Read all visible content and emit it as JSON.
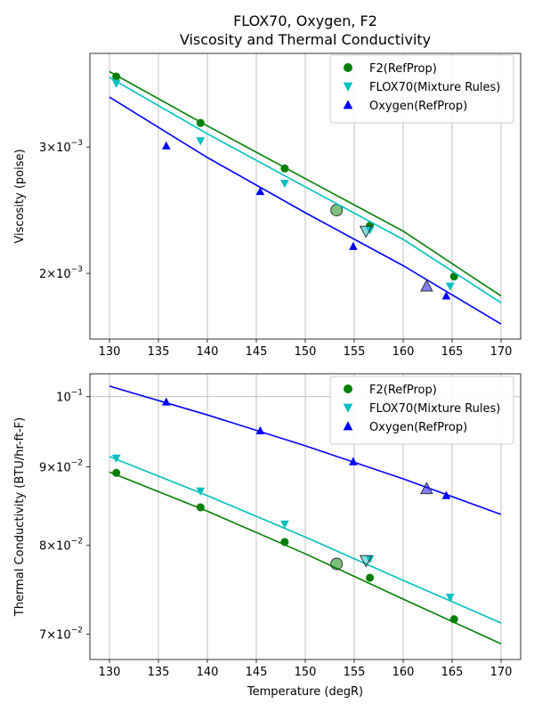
{
  "figure": {
    "title_line1": "FLOX70, Oxygen, F2",
    "title_line2": "Viscosity and Thermal Conductivity"
  },
  "chart_data": [
    {
      "type": "line",
      "title": "FLOX70, Oxygen, F2 — Viscosity and Thermal Conductivity",
      "xlabel": "",
      "ylabel": "Viscosity (poise)",
      "xlim": [
        128,
        172
      ],
      "ylim": [
        0.00162,
        0.00405
      ],
      "y_scale": "log",
      "grid": "vertical",
      "legend_position": "top-right",
      "xticks": [
        130,
        135,
        140,
        145,
        150,
        155,
        160,
        165,
        170
      ],
      "yticks": [
        {
          "value": 0.003,
          "mantissa": "3",
          "exp": "−3"
        },
        {
          "value": 0.002,
          "mantissa": "2",
          "exp": "−3"
        }
      ],
      "series": [
        {
          "name": "F2(RefProp)",
          "color": "#008000",
          "marker": "circle",
          "line": {
            "x": [
              130,
              140,
              150,
              160,
              170
            ],
            "y": [
              0.00382,
              0.00321,
              0.00271,
              0.00229,
              0.00186
            ]
          },
          "points": {
            "x": [
              130.7,
              139.3,
              147.9,
              156.6,
              165.2
            ],
            "y": [
              0.00376,
              0.00324,
              0.0028,
              0.00233,
              0.00198
            ]
          },
          "highlight": {
            "x": 153.2,
            "y": 0.00245
          }
        },
        {
          "name": "FLOX70(Mixture Rules)",
          "color": "#00bfbf",
          "marker": "triangle-down",
          "line": {
            "x": [
              130,
              140,
              150,
              160,
              170
            ],
            "y": [
              0.00375,
              0.00313,
              0.00264,
              0.00223,
              0.00182
            ]
          },
          "points": {
            "x": [
              130.7,
              139.3,
              147.9,
              156.6,
              164.8
            ],
            "y": [
              0.00368,
              0.00306,
              0.00267,
              0.0023,
              0.00192
            ]
          },
          "highlight": {
            "x": 156.2,
            "y": 0.00229
          }
        },
        {
          "name": "Oxygen(RefProp)",
          "color": "#0000ff",
          "marker": "triangle-up",
          "line": {
            "x": [
              130,
              140,
              150,
              160,
              170
            ],
            "y": [
              0.00352,
              0.0029,
              0.00243,
              0.00205,
              0.0017
            ]
          },
          "points": {
            "x": [
              135.8,
              145.4,
              154.9,
              164.4
            ],
            "y": [
              0.00301,
              0.0026,
              0.00218,
              0.00186
            ]
          },
          "highlight": {
            "x": 162.4,
            "y": 0.00192
          }
        }
      ]
    },
    {
      "type": "line",
      "title": "",
      "xlabel": "Temperature (degR)",
      "ylabel": "Thermal Conductivity (BTU/hr-ft-F)",
      "xlim": [
        128,
        172
      ],
      "ylim": [
        0.0674,
        0.1035
      ],
      "y_scale": "log",
      "grid": "vertical",
      "legend_position": "top-right",
      "xticks": [
        130,
        135,
        140,
        145,
        150,
        155,
        160,
        165,
        170
      ],
      "yticks": [
        {
          "value": 0.1,
          "mantissa": "",
          "exp": "−1"
        },
        {
          "value": 0.09,
          "mantissa": "9",
          "exp": "−2"
        },
        {
          "value": 0.08,
          "mantissa": "8",
          "exp": "−2"
        },
        {
          "value": 0.07,
          "mantissa": "7",
          "exp": "−2"
        }
      ],
      "series": [
        {
          "name": "F2(RefProp)",
          "color": "#008000",
          "marker": "circle",
          "line": {
            "x": [
              130,
              140,
              150,
              160,
              170
            ],
            "y": [
              0.0893,
              0.0842,
              0.079,
              0.0738,
              0.069
            ]
          },
          "points": {
            "x": [
              130.7,
              139.3,
              147.9,
              156.6,
              165.2
            ],
            "y": [
              0.0892,
              0.0847,
              0.0804,
              0.0762,
              0.0716
            ]
          },
          "highlight": {
            "x": 153.2,
            "y": 0.0778
          }
        },
        {
          "name": "FLOX70(Mixture Rules)",
          "color": "#00bfbf",
          "marker": "triangle-down",
          "line": {
            "x": [
              130,
              140,
              150,
              160,
              170
            ],
            "y": [
              0.0914,
              0.0862,
              0.081,
              0.0759,
              0.0712
            ]
          },
          "points": {
            "x": [
              130.7,
              139.3,
              147.9,
              156.6,
              164.8
            ],
            "y": [
              0.0912,
              0.0868,
              0.0826,
              0.0784,
              0.074
            ]
          },
          "highlight": {
            "x": 156.2,
            "y": 0.0782
          }
        },
        {
          "name": "Oxygen(RefProp)",
          "color": "#0000ff",
          "marker": "triangle-up",
          "line": {
            "x": [
              130,
              140,
              150,
              160,
              170
            ],
            "y": [
              0.1016,
              0.0973,
              0.0929,
              0.0884,
              0.0838
            ]
          },
          "points": {
            "x": [
              135.8,
              145.4,
              154.9,
              164.4
            ],
            "y": [
              0.0992,
              0.095,
              0.0907,
              0.0862
            ]
          },
          "highlight": {
            "x": 162.4,
            "y": 0.0871
          }
        }
      ]
    }
  ]
}
